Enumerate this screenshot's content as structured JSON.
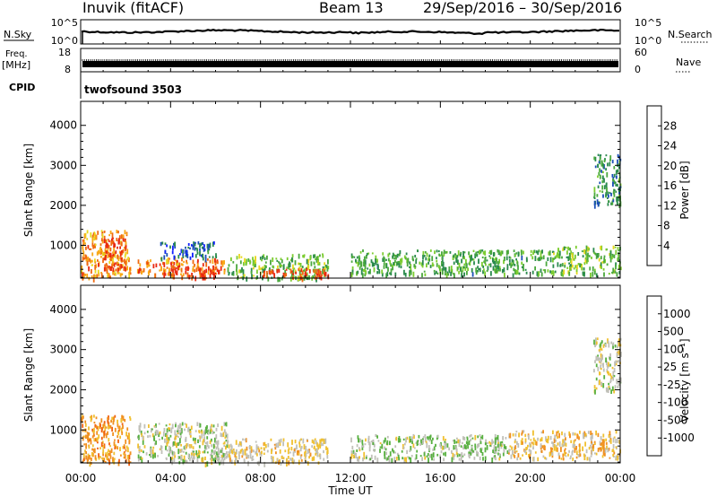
{
  "header": {
    "station": "Inuvik (fitACF)",
    "beam": "Beam 13",
    "dates": "29/Sep/2016 – 30/Sep/2016"
  },
  "top_panels": {
    "nsky_label": "N.Sky",
    "nsky_ticks": [
      "10^5",
      "10^0"
    ],
    "nsearch_label": "N.Search",
    "nsearch_ticks": [
      "10^5",
      "10^0"
    ],
    "freq_label": "Freq.",
    "freq_unit": "[MHz]",
    "freq_ticks": [
      "18",
      "8"
    ],
    "nave_label": "Nave",
    "nave_ticks": [
      "60",
      "0"
    ],
    "cpid_label": "CPID",
    "cpid_value": "twofsound 3503"
  },
  "axes": {
    "ylabel": "Slant Range [km]",
    "xlabel": "Time UT",
    "x_ticks": [
      "00:00",
      "04:00",
      "08:00",
      "12:00",
      "16:00",
      "20:00",
      "00:00"
    ],
    "y_ticks": [
      "1000",
      "2000",
      "3000",
      "4000"
    ]
  },
  "colorbars": {
    "power": {
      "label": "Power [dB]",
      "ticks": [
        "4",
        "8",
        "12",
        "16",
        "20",
        "24",
        "28"
      ],
      "colors": [
        "#1020ff",
        "#1c4fb8",
        "#2a8a4c",
        "#4aa83c",
        "#7ccc30",
        "#e8d820",
        "#f8a818",
        "#f06a10",
        "#e82810"
      ]
    },
    "velocity": {
      "label": "Velocity [m s⁻¹]",
      "ticks": [
        "1000",
        "500",
        "100",
        "25",
        "-25",
        "-100",
        "-500",
        "-1000"
      ],
      "colors": [
        "#1838c8",
        "#2a6ab0",
        "#2e8a50",
        "#58b040",
        "#c0c0b8",
        "#f0c030",
        "#f09020",
        "#f06010",
        "#e81810"
      ]
    }
  },
  "chart_data": [
    {
      "type": "heatmap",
      "name": "power",
      "xlabel": "Time UT",
      "ylabel": "Slant Range [km]",
      "xlim": [
        0,
        24
      ],
      "ylim": [
        180,
        4600
      ],
      "zlim": [
        0,
        32
      ],
      "colorbar_label": "Power [dB]",
      "regions": [
        {
          "t": [
            0.0,
            2.2
          ],
          "r": [
            200,
            1400
          ],
          "level": 24
        },
        {
          "t": [
            1.0,
            2.0
          ],
          "r": [
            400,
            1200
          ],
          "level": 30
        },
        {
          "t": [
            2.5,
            6.5
          ],
          "r": [
            300,
            700
          ],
          "level": 26
        },
        {
          "t": [
            3.5,
            6.0
          ],
          "r": [
            700,
            1100
          ],
          "level": 6
        },
        {
          "t": [
            4.0,
            6.0
          ],
          "r": [
            200,
            500
          ],
          "level": 30
        },
        {
          "t": [
            6.5,
            11.0
          ],
          "r": [
            200,
            800
          ],
          "level": 14
        },
        {
          "t": [
            8.0,
            11.0
          ],
          "r": [
            200,
            450
          ],
          "level": 30
        },
        {
          "t": [
            12.0,
            21.0
          ],
          "r": [
            300,
            900
          ],
          "level": 12
        },
        {
          "t": [
            21.0,
            24.0
          ],
          "r": [
            300,
            1000
          ],
          "level": 14
        },
        {
          "t": [
            22.8,
            24.0
          ],
          "r": [
            2000,
            3300
          ],
          "level": 10
        }
      ]
    },
    {
      "type": "heatmap",
      "name": "velocity",
      "xlabel": "Time UT",
      "ylabel": "Slant Range [km]",
      "xlim": [
        0,
        24
      ],
      "ylim": [
        180,
        4600
      ],
      "zlim": [
        -1000,
        1000
      ],
      "colorbar_label": "Velocity [m s⁻¹]",
      "regions": [
        {
          "t": [
            0.0,
            2.2
          ],
          "r": [
            200,
            1400
          ],
          "level": -400
        },
        {
          "t": [
            2.5,
            6.5
          ],
          "r": [
            300,
            1200
          ],
          "level": 0
        },
        {
          "t": [
            4.0,
            6.5
          ],
          "r": [
            200,
            500
          ],
          "level": 60
        },
        {
          "t": [
            6.5,
            11.0
          ],
          "r": [
            200,
            800
          ],
          "level": -150
        },
        {
          "t": [
            12.0,
            19.0
          ],
          "r": [
            300,
            900
          ],
          "level": 80
        },
        {
          "t": [
            19.0,
            24.0
          ],
          "r": [
            300,
            1000
          ],
          "level": -200
        },
        {
          "t": [
            22.8,
            24.0
          ],
          "r": [
            2000,
            3300
          ],
          "level": 0
        }
      ]
    }
  ]
}
